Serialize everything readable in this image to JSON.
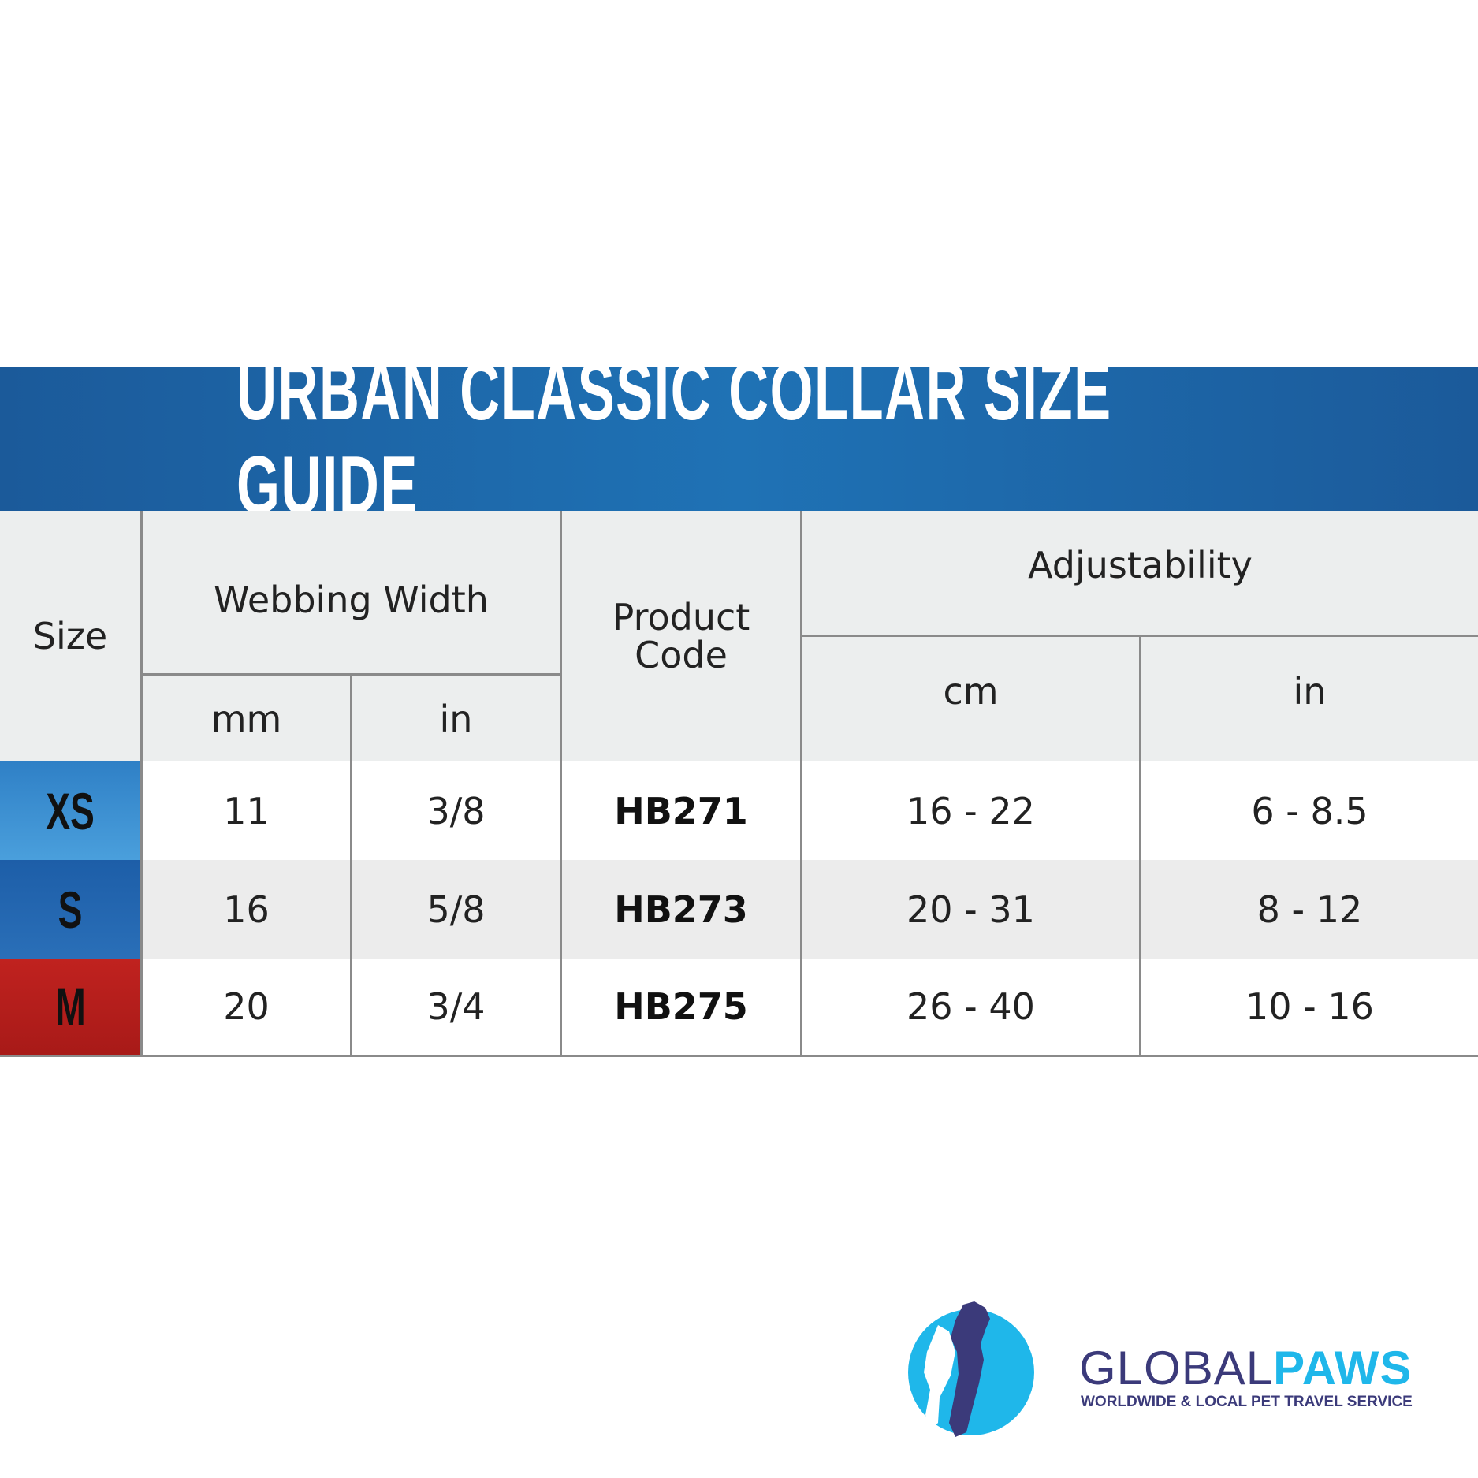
{
  "header": {
    "title": "URBAN CLASSIC COLLAR SIZE GUIDE"
  },
  "table": {
    "headers": {
      "size": "Size",
      "webbing_width": "Webbing Width",
      "webbing_mm": "mm",
      "webbing_in": "in",
      "product_code": "Product Code",
      "adjustability": "Adjustability",
      "adjust_cm": "cm",
      "adjust_in": "in"
    },
    "rows": [
      [
        "XS",
        "11",
        "3/8",
        "HB271",
        "16 - 22",
        "6 - 8.5"
      ],
      [
        "S",
        "16",
        "5/8",
        "HB273",
        "20 - 31",
        "8 - 12"
      ],
      [
        "M",
        "20",
        "3/4",
        "HB275",
        "26 - 40",
        "10 - 16"
      ]
    ]
  },
  "logo": {
    "name_part1": "GLOBAL",
    "name_part2": "PAWS",
    "tagline": "WORLDWIDE & LOCAL PET TRAVEL SERVICE"
  }
}
